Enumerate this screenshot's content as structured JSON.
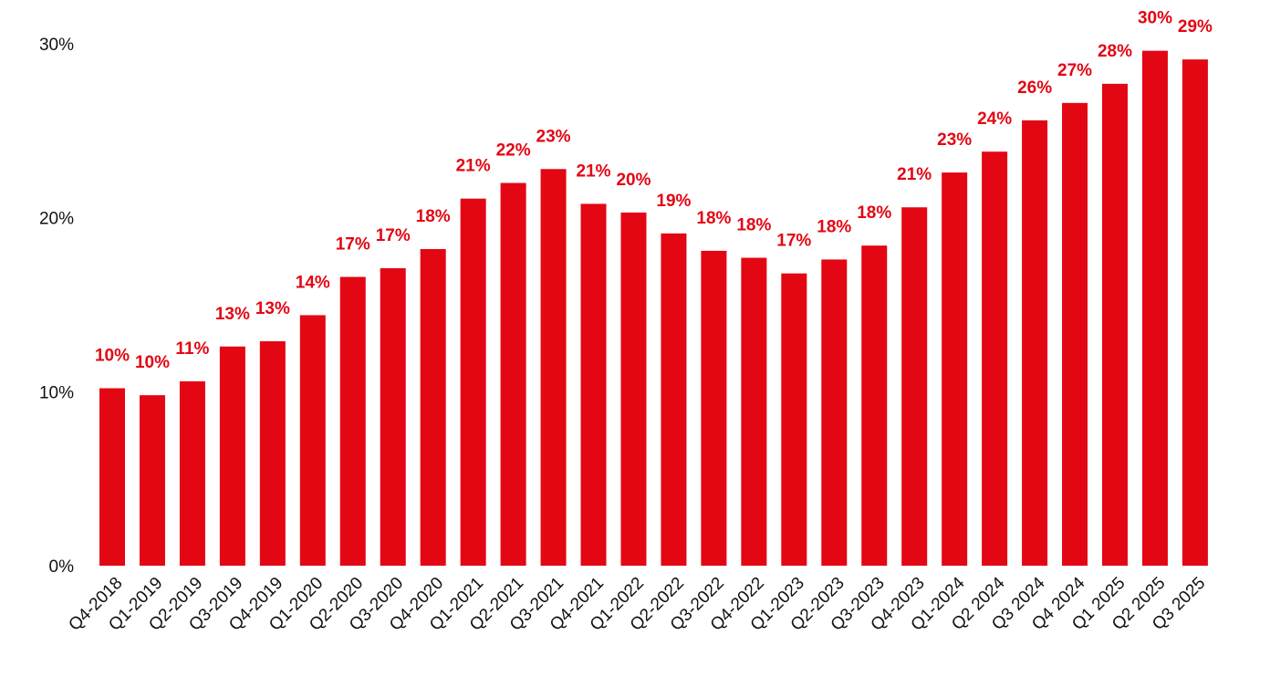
{
  "chart_data": {
    "type": "bar",
    "categories": [
      "Q4-2018",
      "Q1-2019",
      "Q2-2019",
      "Q3-2019",
      "Q4-2019",
      "Q1-2020",
      "Q2-2020",
      "Q3-2020",
      "Q4-2020",
      "Q1-2021",
      "Q2-2021",
      "Q3-2021",
      "Q4-2021",
      "Q1-2022",
      "Q2-2022",
      "Q3-2022",
      "Q4-2022",
      "Q1-2023",
      "Q2-2023",
      "Q3-2023",
      "Q4-2023",
      "Q1-2024",
      "Q2 2024",
      "Q3 2024",
      "Q4 2024",
      "Q1 2025",
      "Q2 2025",
      "Q3 2025"
    ],
    "values": [
      10.2,
      9.8,
      10.6,
      12.6,
      12.9,
      14.4,
      16.6,
      17.1,
      18.2,
      21.1,
      22.0,
      22.8,
      20.8,
      20.3,
      19.1,
      18.1,
      17.7,
      16.8,
      17.6,
      18.4,
      20.6,
      22.6,
      23.8,
      25.6,
      26.6,
      27.7,
      29.6,
      29.1
    ],
    "value_labels": [
      "10%",
      "10%",
      "11%",
      "13%",
      "13%",
      "14%",
      "17%",
      "17%",
      "18%",
      "21%",
      "22%",
      "23%",
      "21%",
      "20%",
      "19%",
      "18%",
      "18%",
      "17%",
      "18%",
      "18%",
      "21%",
      "23%",
      "24%",
      "26%",
      "27%",
      "28%",
      "30%",
      "29%"
    ],
    "color": "#e30613",
    "ylim": [
      0,
      30
    ],
    "yticks": [
      {
        "value": 0,
        "label": "0%"
      },
      {
        "value": 10,
        "label": "10%"
      },
      {
        "value": 20,
        "label": "20%"
      },
      {
        "value": 30,
        "label": "30%"
      }
    ]
  }
}
